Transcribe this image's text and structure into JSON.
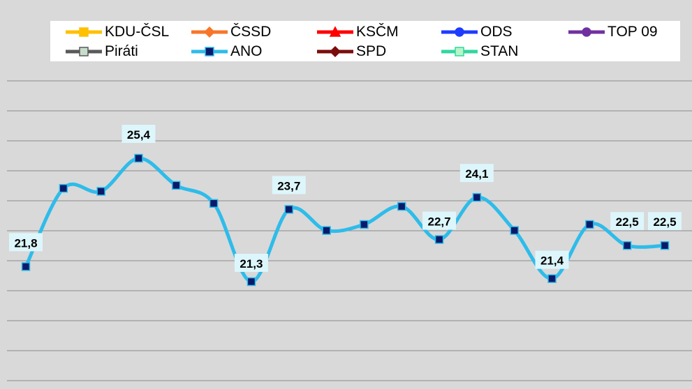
{
  "chart_data": {
    "type": "line",
    "title": "",
    "xlabel": "",
    "ylabel": "",
    "ylim": [
      19.5,
      26.5
    ],
    "grid": true,
    "legend_position": "top",
    "legend": [
      {
        "name": "KDU-ČSL",
        "color": "#ffc000",
        "marker": "square"
      },
      {
        "name": "ČSSD",
        "color": "#f7762a",
        "marker": "diamond"
      },
      {
        "name": "KSČM",
        "color": "#ff0000",
        "marker": "triangle"
      },
      {
        "name": "ODS",
        "color": "#1f3bff",
        "marker": "circle"
      },
      {
        "name": "TOP 09",
        "color": "#7030a0",
        "marker": "circle"
      },
      {
        "name": "Piráti",
        "color": "#595959",
        "marker": "square"
      },
      {
        "name": "ANO",
        "color": "#2ebcea",
        "marker": "square"
      },
      {
        "name": "SPD",
        "color": "#7b0c0c",
        "marker": "diamond"
      },
      {
        "name": "STAN",
        "color": "#33d6a0",
        "marker": "square"
      }
    ],
    "series": [
      {
        "name": "ANO",
        "color": "#2ebcea",
        "marker_color": "#0a1a6a",
        "values": [
          21.8,
          24.4,
          24.3,
          25.4,
          24.5,
          23.9,
          21.3,
          23.7,
          23.0,
          23.2,
          23.8,
          22.7,
          24.1,
          23.0,
          21.4,
          23.2,
          22.5,
          22.5
        ],
        "data_labels": [
          "21,8",
          "",
          "",
          "25,4",
          "",
          "",
          "21,3",
          "23,7",
          "",
          "",
          "",
          "22,7",
          "24,1",
          "",
          "21,4",
          "",
          "22,5",
          "22,5"
        ]
      }
    ]
  }
}
